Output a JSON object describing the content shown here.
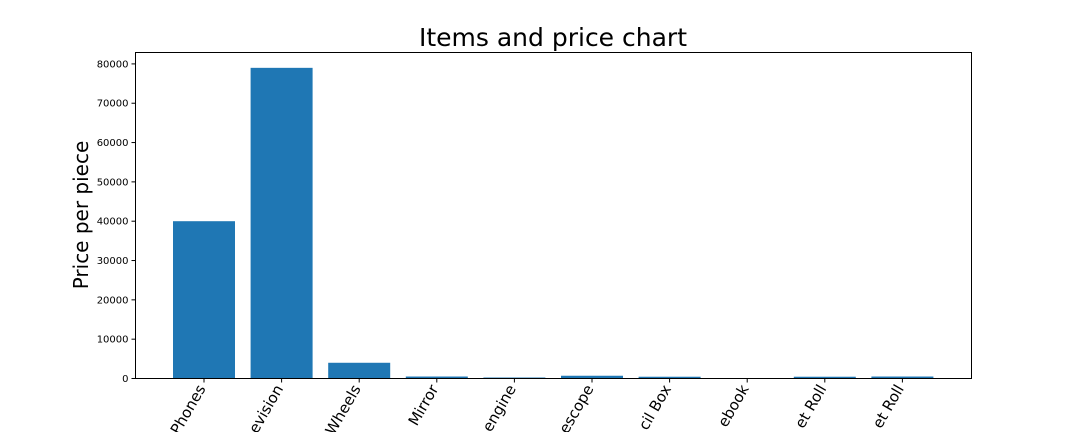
{
  "chart_data": {
    "type": "bar",
    "title": "Items and price chart",
    "xlabel": "",
    "ylabel": "Price per piece",
    "categories": [
      "Phones",
      "Television",
      "Wheels",
      "Mirror",
      "Engine",
      "Telescope",
      "Pencil Box",
      "Notebook",
      "Sheet Roll",
      "Sheet Roll"
    ],
    "visible_tick_text": [
      "Phones",
      "evision",
      "Wheels",
      "Mirror",
      "engine",
      "escope",
      "cil Box",
      "ebook",
      "et Roll",
      "et Roll"
    ],
    "values": [
      40000,
      79000,
      4000,
      500,
      250,
      700,
      450,
      50,
      450,
      500
    ],
    "yticks": [
      0,
      10000,
      20000,
      30000,
      40000,
      50000,
      60000,
      70000,
      80000
    ],
    "ylim": [
      0,
      82900
    ],
    "grid": false,
    "bar_color": "#1f77b4"
  }
}
